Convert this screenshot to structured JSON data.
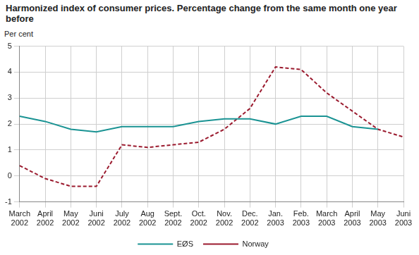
{
  "chart_data": {
    "type": "line",
    "title": "Harmonized index of consumer prices. Percentage change from the same month one year before",
    "y_label": "Per cent",
    "categories": [
      "March 2002",
      "April 2002",
      "May 2002",
      "Juni 2002",
      "July 2002",
      "Aug 2002",
      "Sept. 2002",
      "Oct. 2002",
      "Nov. 2002",
      "Dec. 2002",
      "Jan. 2003",
      "Feb. 2003",
      "March 2003",
      "April 2003",
      "May 2003",
      "Juni 2003"
    ],
    "series": [
      {
        "name": "EØS",
        "color": "#1a9393",
        "line_style": "solid",
        "values": [
          2.3,
          2.1,
          1.8,
          1.7,
          1.9,
          1.9,
          1.9,
          2.1,
          2.2,
          2.2,
          2.0,
          2.3,
          2.3,
          1.9,
          1.8,
          null
        ]
      },
      {
        "name": "Norway",
        "color": "#9b1b2f",
        "line_style": "dashed",
        "values": [
          0.4,
          -0.1,
          -0.4,
          -0.4,
          1.2,
          1.1,
          1.2,
          1.3,
          1.8,
          2.6,
          4.2,
          4.1,
          3.2,
          2.5,
          1.8,
          1.5
        ]
      }
    ],
    "ylim": [
      -1,
      5
    ],
    "yticks": [
      -1,
      0,
      1,
      2,
      3,
      4,
      5
    ],
    "grid": true,
    "legend": "bottom",
    "marker": "none"
  }
}
